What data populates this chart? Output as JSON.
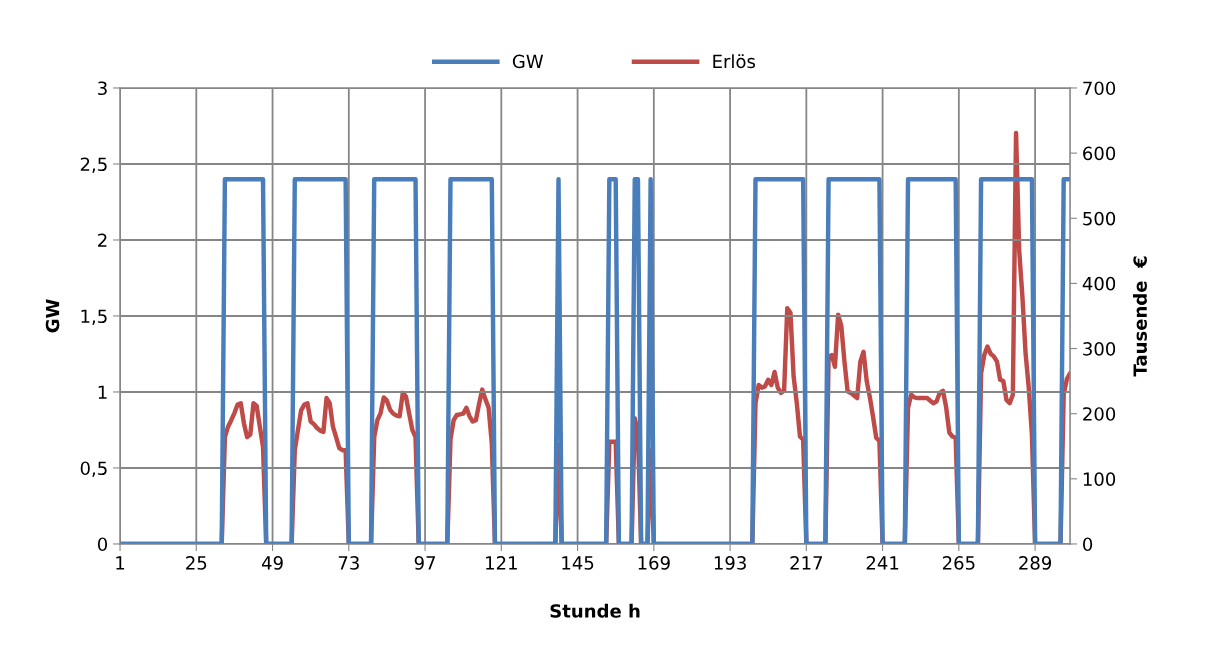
{
  "chart_data": {
    "type": "line",
    "xlabel": "Stunde h",
    "ylabel": "GW",
    "y2label": "Tausende  €",
    "xlim": [
      1,
      300
    ],
    "xticks": [
      1,
      25,
      49,
      73,
      97,
      121,
      145,
      169,
      193,
      217,
      241,
      265,
      289
    ],
    "ylim": [
      0,
      3
    ],
    "yticks": [
      0,
      {
        "value": 0.5,
        "label": "0,5"
      },
      1,
      {
        "value": 1.5,
        "label": "1,5"
      },
      2,
      {
        "value": 2.5,
        "label": "2,5"
      },
      3
    ],
    "y2lim": [
      0,
      700
    ],
    "y2ticks": [
      0,
      100,
      200,
      300,
      400,
      500,
      600,
      700
    ],
    "grid": true,
    "legend": "top",
    "line_style": "solid",
    "marker": "none",
    "series": [
      {
        "name": "GW",
        "color": "#4a7ebb",
        "x": [
          1,
          33,
          34,
          46,
          47,
          55,
          56,
          72,
          73,
          80,
          81,
          94,
          95,
          104,
          105,
          118,
          119,
          138,
          139,
          140,
          154,
          155,
          157,
          158,
          162,
          163,
          164,
          165,
          167,
          168,
          169,
          200,
          201,
          216,
          217,
          223,
          224,
          240,
          241,
          248,
          249,
          264,
          265,
          271,
          272,
          288,
          289,
          297,
          298,
          300
        ],
        "values": [
          0,
          0,
          2.4,
          2.4,
          0,
          0,
          2.4,
          2.4,
          0,
          0,
          2.4,
          2.4,
          0,
          0,
          2.4,
          2.4,
          0,
          0,
          2.4,
          0,
          0,
          2.4,
          2.4,
          0,
          0,
          2.4,
          2.4,
          0,
          0,
          2.4,
          0,
          0,
          2.4,
          2.4,
          0,
          0,
          2.4,
          2.4,
          0,
          0,
          2.4,
          2.4,
          0,
          0,
          2.4,
          2.4,
          0,
          0,
          2.4,
          2.4
        ]
      },
      {
        "name": "Erlös",
        "color": "#be4b48",
        "axis": "y2",
        "x": [
          1,
          33,
          34,
          35,
          36,
          37,
          38,
          39,
          40,
          41,
          42,
          43,
          44,
          45,
          46,
          47,
          55,
          56,
          57,
          58,
          59,
          60,
          61,
          62,
          63,
          64,
          65,
          66,
          67,
          68,
          69,
          70,
          71,
          72,
          73,
          80,
          81,
          82,
          83,
          84,
          85,
          86,
          87,
          88,
          89,
          90,
          91,
          92,
          93,
          94,
          95,
          104,
          105,
          106,
          107,
          108,
          109,
          110,
          111,
          112,
          113,
          114,
          115,
          116,
          117,
          118,
          119,
          138,
          139,
          140,
          154,
          155,
          156,
          157,
          158,
          162,
          163,
          164,
          165,
          167,
          168,
          169,
          200,
          201,
          202,
          203,
          204,
          205,
          206,
          207,
          208,
          209,
          210,
          211,
          212,
          213,
          214,
          215,
          216,
          217,
          223,
          224,
          225,
          226,
          227,
          228,
          229,
          230,
          231,
          232,
          233,
          234,
          235,
          236,
          237,
          238,
          239,
          240,
          241,
          248,
          249,
          250,
          251,
          252,
          253,
          254,
          255,
          256,
          257,
          258,
          259,
          260,
          261,
          262,
          263,
          264,
          265,
          271,
          272,
          273,
          274,
          275,
          276,
          277,
          278,
          279,
          280,
          281,
          282,
          283,
          284,
          285,
          286,
          287,
          288,
          289,
          297,
          298,
          299,
          300
        ],
        "values": [
          0,
          0,
          164,
          180,
          190,
          201,
          214,
          216,
          185,
          164,
          168,
          216,
          212,
          180,
          149,
          0,
          0,
          144,
          175,
          205,
          214,
          216,
          188,
          184,
          178,
          174,
          172,
          224,
          216,
          180,
          164,
          147,
          144,
          144,
          0,
          0,
          164,
          190,
          201,
          225,
          220,
          206,
          200,
          197,
          196,
          232,
          226,
          200,
          175,
          164,
          0,
          0,
          160,
          190,
          198,
          199,
          200,
          209,
          196,
          188,
          190,
          215,
          237,
          222,
          209,
          155,
          0,
          0,
          152,
          0,
          0,
          157,
          157,
          157,
          0,
          0,
          193,
          170,
          0,
          0,
          144,
          0,
          0,
          216,
          244,
          240,
          242,
          252,
          244,
          264,
          240,
          232,
          235,
          362,
          355,
          257,
          216,
          165,
          160,
          0,
          0,
          287,
          290,
          272,
          352,
          335,
          280,
          234,
          232,
          228,
          224,
          280,
          295,
          250,
          225,
          195,
          163,
          158,
          0,
          0,
          209,
          229,
          225,
          224,
          224,
          224,
          224,
          220,
          216,
          219,
          232,
          235,
          210,
          171,
          165,
          163,
          0,
          0,
          262,
          290,
          303,
          292,
          288,
          280,
          252,
          250,
          221,
          216,
          229,
          631,
          450,
          380,
          293,
          240,
          168,
          0,
          0,
          230,
          253,
          262
        ]
      }
    ]
  }
}
